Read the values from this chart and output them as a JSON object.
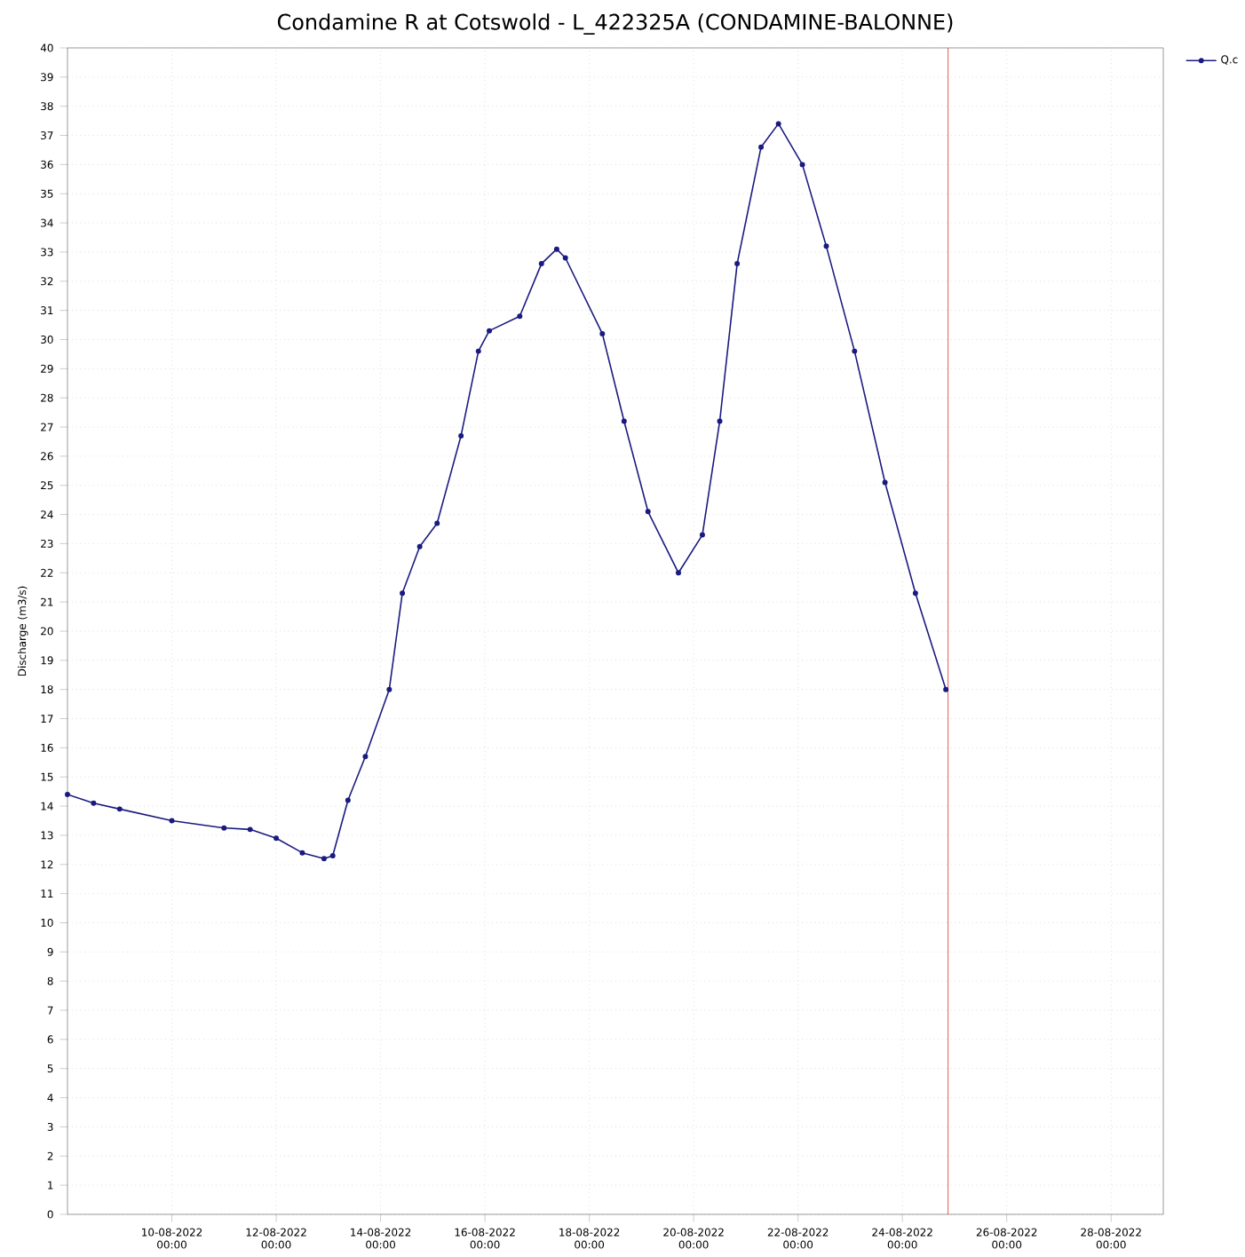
{
  "chart_data": {
    "type": "line",
    "title": "Condamine R at Cotswold - L_422325A (CONDAMINE-BALONNE)",
    "ylabel": "Discharge (m3/s)",
    "x": [
      "2022-08-08T00:00",
      "2022-08-08T12:00",
      "2022-08-09T00:00",
      "2022-08-10T00:00",
      "2022-08-11T00:00",
      "2022-08-11T12:00",
      "2022-08-12T00:00",
      "2022-08-12T12:00",
      "2022-08-12T22:00",
      "2022-08-13T02:00",
      "2022-08-13T09:00",
      "2022-08-13T17:00",
      "2022-08-14T04:00",
      "2022-08-14T10:00",
      "2022-08-14T18:00",
      "2022-08-15T02:00",
      "2022-08-15T13:00",
      "2022-08-15T21:00",
      "2022-08-16T02:00",
      "2022-08-16T16:00",
      "2022-08-17T02:00",
      "2022-08-17T09:00",
      "2022-08-17T13:00",
      "2022-08-18T06:00",
      "2022-08-18T16:00",
      "2022-08-19T03:00",
      "2022-08-19T17:00",
      "2022-08-20T04:00",
      "2022-08-20T12:00",
      "2022-08-20T20:00",
      "2022-08-21T07:00",
      "2022-08-21T15:00",
      "2022-08-22T02:00",
      "2022-08-22T13:00",
      "2022-08-23T02:00",
      "2022-08-23T16:00",
      "2022-08-24T06:00",
      "2022-08-24T20:00"
    ],
    "series": [
      {
        "name": "Q.c",
        "color": "#1a1a80",
        "values": [
          14.4,
          14.1,
          13.9,
          13.5,
          13.25,
          13.2,
          12.9,
          12.4,
          12.2,
          12.3,
          14.2,
          15.7,
          18.0,
          21.3,
          22.9,
          23.7,
          26.7,
          29.6,
          30.3,
          30.8,
          32.6,
          33.1,
          32.8,
          30.2,
          27.2,
          24.1,
          22.0,
          23.3,
          27.2,
          32.6,
          36.6,
          37.4,
          36.0,
          33.2,
          29.6,
          25.1,
          21.3,
          18.0
        ]
      }
    ],
    "xlim": [
      "2022-08-08T00:00",
      "2022-08-29T00:00"
    ],
    "xticks": [
      {
        "value": "2022-08-10",
        "label": "10-08-2022 00:00"
      },
      {
        "value": "2022-08-12",
        "label": "12-08-2022 00:00"
      },
      {
        "value": "2022-08-14",
        "label": "14-08-2022 00:00"
      },
      {
        "value": "2022-08-16",
        "label": "16-08-2022 00:00"
      },
      {
        "value": "2022-08-18",
        "label": "18-08-2022 00:00"
      },
      {
        "value": "2022-08-20",
        "label": "20-08-2022 00:00"
      },
      {
        "value": "2022-08-22",
        "label": "22-08-2022 00:00"
      },
      {
        "value": "2022-08-24",
        "label": "24-08-2022 00:00"
      },
      {
        "value": "2022-08-26",
        "label": "26-08-2022 00:00"
      },
      {
        "value": "2022-08-28",
        "label": "28-08-2022 00:00"
      }
    ],
    "ylim": [
      0,
      40
    ],
    "yticks": [
      0,
      1,
      2,
      3,
      4,
      5,
      6,
      7,
      8,
      9,
      10,
      11,
      12,
      13,
      14,
      15,
      16,
      17,
      18,
      19,
      20,
      21,
      22,
      23,
      24,
      25,
      26,
      27,
      28,
      29,
      30,
      31,
      32,
      33,
      34,
      35,
      36,
      37,
      38,
      39,
      40
    ],
    "ref_lines": [
      {
        "axis": "x",
        "value": "2022-08-24T21:00",
        "color": "#e03030"
      }
    ],
    "grid": true,
    "legend": "top right",
    "marker": "circle",
    "line_style": "solid"
  }
}
